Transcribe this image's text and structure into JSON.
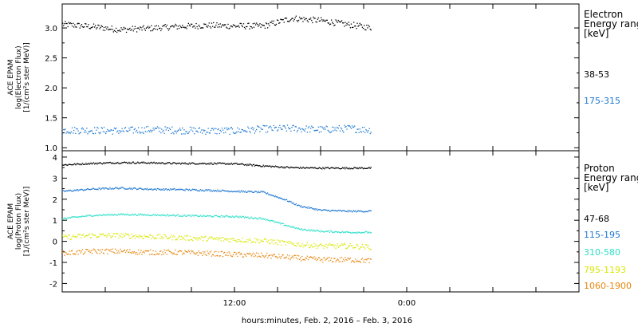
{
  "colors": {
    "black": "#000000",
    "blue": "#1f78d1",
    "cyan": "#2fe0c8",
    "yellow": "#d8e800",
    "orange": "#e8860c"
  },
  "xlabel": "hours:minutes, Feb.  2, 2016 – Feb.  3, 2016",
  "chart_data": [
    {
      "type": "scatter",
      "panel": "electron",
      "ylabel": [
        "ACE EPAM",
        "log(Electron Flux)",
        "[1/(cm²s ster MeV)]"
      ],
      "ylim": [
        0.95,
        3.4
      ],
      "yticks": [
        1.0,
        1.5,
        2.0,
        2.5,
        3.0
      ],
      "ytick_labels": [
        "1.0",
        "1.5",
        "2.0",
        "2.5",
        "3.0"
      ],
      "x_unit": "hours since Feb. 2 00:00",
      "xlim": [
        0,
        36
      ],
      "xticks": [
        0,
        3,
        6,
        9,
        12,
        15,
        18,
        21,
        24,
        27,
        30,
        33,
        36
      ],
      "xtick_labels": {
        "12": "12:00",
        "24": "0:00"
      },
      "legend_title": [
        "Electron",
        "Energy ranges",
        "[keV]"
      ],
      "series": [
        {
          "name": "38-53",
          "color": "#000000",
          "x": [
            0,
            2,
            4,
            6,
            8,
            10,
            12,
            14,
            16,
            18,
            20,
            21.5
          ],
          "values": [
            3.07,
            3.03,
            2.98,
            3.0,
            3.03,
            3.05,
            3.04,
            3.04,
            3.17,
            3.13,
            3.06,
            3.01
          ]
        },
        {
          "name": "175-315",
          "color": "#1f78d1",
          "x": [
            0,
            2,
            4,
            6,
            8,
            10,
            12,
            14,
            16,
            18,
            20,
            21.5
          ],
          "values": [
            1.3,
            1.3,
            1.29,
            1.31,
            1.3,
            1.29,
            1.29,
            1.32,
            1.33,
            1.31,
            1.33,
            1.3
          ]
        }
      ]
    },
    {
      "type": "scatter",
      "panel": "proton",
      "ylabel": [
        "ACE EPAM",
        "log(Proton Flux)",
        "[1/(cm²s ster MeV)]"
      ],
      "ylim": [
        -2.4,
        4.3
      ],
      "yticks": [
        -2,
        -1,
        0,
        1,
        2,
        3,
        4
      ],
      "ytick_labels": [
        "-2",
        "-1",
        "0",
        "1",
        "2",
        "3",
        "4"
      ],
      "x_unit": "hours since Feb. 2 00:00",
      "xlim": [
        0,
        36
      ],
      "xticks": [
        0,
        3,
        6,
        9,
        12,
        15,
        18,
        21,
        24,
        27,
        30,
        33,
        36
      ],
      "xtick_labels": {
        "12": "12:00",
        "24": "0:00"
      },
      "legend_title": [
        "Proton",
        "Energy ranges",
        "[keV]"
      ],
      "series": [
        {
          "name": "47-68",
          "color": "#000000",
          "x": [
            0,
            2,
            4,
            6,
            8,
            10,
            12,
            14,
            16,
            18,
            20,
            21.5
          ],
          "values": [
            3.65,
            3.72,
            3.76,
            3.75,
            3.72,
            3.72,
            3.7,
            3.6,
            3.52,
            3.5,
            3.5,
            3.5
          ]
        },
        {
          "name": "115-195",
          "color": "#1f78d1",
          "x": [
            0,
            2,
            4,
            6,
            8,
            10,
            12,
            14,
            15.5,
            16.5,
            18,
            20,
            21.5
          ],
          "values": [
            2.4,
            2.5,
            2.55,
            2.5,
            2.48,
            2.45,
            2.4,
            2.35,
            2.0,
            1.7,
            1.5,
            1.45,
            1.45
          ]
        },
        {
          "name": "310-580",
          "color": "#2fe0c8",
          "x": [
            0,
            2,
            4,
            6,
            8,
            10,
            12,
            14,
            15.5,
            16.5,
            18,
            20,
            21.5
          ],
          "values": [
            1.1,
            1.25,
            1.3,
            1.28,
            1.25,
            1.22,
            1.2,
            1.1,
            0.8,
            0.6,
            0.5,
            0.45,
            0.45
          ]
        },
        {
          "name": "795-1193",
          "color": "#d8e800",
          "x": [
            0,
            2,
            4,
            6,
            8,
            10,
            12,
            14,
            16,
            18,
            20,
            21.5
          ],
          "values": [
            0.2,
            0.3,
            0.3,
            0.25,
            0.2,
            0.15,
            0.1,
            0.05,
            -0.1,
            -0.2,
            -0.2,
            -0.25
          ]
        },
        {
          "name": "1060-1900",
          "color": "#e8860c",
          "x": [
            0,
            2,
            4,
            6,
            8,
            10,
            12,
            14,
            16,
            18,
            20,
            21.5
          ],
          "values": [
            -0.55,
            -0.45,
            -0.45,
            -0.5,
            -0.5,
            -0.55,
            -0.6,
            -0.65,
            -0.75,
            -0.85,
            -0.85,
            -0.9
          ]
        }
      ]
    }
  ]
}
